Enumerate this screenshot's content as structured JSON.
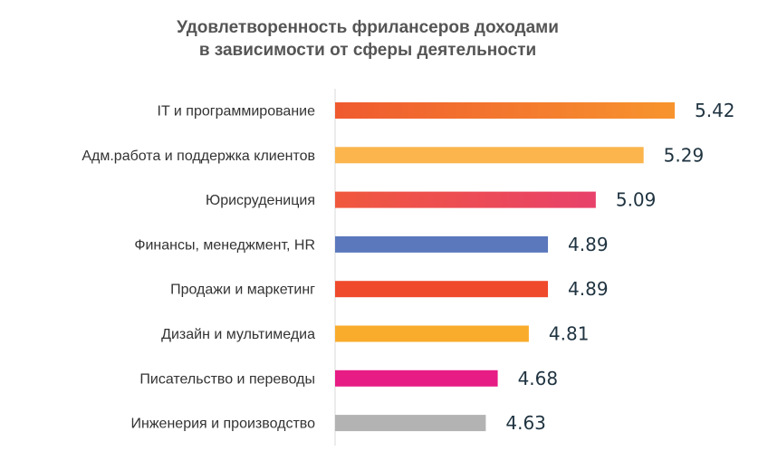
{
  "chart_data": {
    "type": "bar",
    "orientation": "horizontal",
    "title_lines": [
      "Удовлетворенность фрилансеров доходами",
      "в зависимости от сферы деятельности"
    ],
    "categories": [
      "IT и программирование",
      "Адм.работа и поддержка клиентов",
      "Юрисрудениция",
      "Финансы, менеджмент, HR",
      "Продажи и маркетинг",
      "Дизайн и мультимедиа",
      "Писательство и переводы",
      "Инженерия и производство"
    ],
    "values": [
      5.42,
      5.29,
      5.09,
      4.89,
      4.89,
      4.81,
      4.68,
      4.63
    ],
    "value_labels": [
      "5.42",
      "5.29",
      "5.09",
      "4.89",
      "4.89",
      "4.81",
      "4.68",
      "4.63"
    ],
    "colors": [
      [
        "#ef5a2f",
        "#f7942e"
      ],
      [
        "#fbb54c",
        "#fbb54c"
      ],
      [
        "#f0583d",
        "#e8416b"
      ],
      [
        "#5b78bd",
        "#5b78bd"
      ],
      [
        "#ef4a2c",
        "#ef4a2c"
      ],
      [
        "#f9ac2c",
        "#f9ac2c"
      ],
      [
        "#e71c85",
        "#e71c85"
      ],
      [
        "#b3b3b3",
        "#b3b3b3"
      ]
    ],
    "xlim": [
      4,
      5.5
    ],
    "grid": false,
    "legend": "none"
  }
}
